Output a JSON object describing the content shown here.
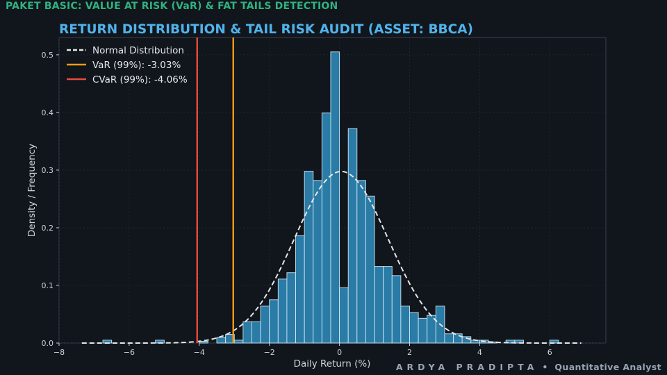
{
  "header": {
    "package_label": "PAKET BASIC: VALUE AT RISK (VaR) & FAT TAILS DETECTION"
  },
  "footer": {
    "name": "ARDYA PRADIPTA",
    "separator": "•",
    "role": "Quantitative Analyst"
  },
  "colors": {
    "background": "#11151c",
    "plot_background": "#11151c",
    "bar_fill": "#2a7ba5",
    "bar_edge": "#cfe8f5",
    "normal_curve": "#e6e6e6",
    "var_line": "#f39c12",
    "cvar_line": "#e74c3c",
    "title": "#4fb3ea",
    "header": "#2fb37f",
    "text": "#d0d4da"
  },
  "chart_data": {
    "type": "histogram",
    "title": "RETURN DISTRIBUTION & TAIL RISK AUDIT (ASSET: BBCA)",
    "xlabel": "Daily Return (%)",
    "ylabel": "Density / Frequency",
    "xlim": [
      -8,
      7.6
    ],
    "ylim": [
      0,
      0.53
    ],
    "xticks": [
      -8,
      -6,
      -4,
      -2,
      0,
      2,
      4,
      6
    ],
    "xtick_labels": [
      "−8",
      "−6",
      "−4",
      "−2",
      "0",
      "2",
      "4",
      "6"
    ],
    "yticks": [
      0.0,
      0.1,
      0.2,
      0.3,
      0.4,
      0.5
    ],
    "ytick_labels": [
      "0.0",
      "0.1",
      "0.2",
      "0.3",
      "0.4",
      "0.5"
    ],
    "grid": true,
    "legend_position": "top-left",
    "bin_width": 0.25,
    "bins": [
      {
        "x0": -6.75,
        "density": 0.005
      },
      {
        "x0": -5.25,
        "density": 0.005
      },
      {
        "x0": -4.0,
        "density": 0.003
      },
      {
        "x0": -3.5,
        "density": 0.01
      },
      {
        "x0": -3.25,
        "density": 0.015
      },
      {
        "x0": -3.0,
        "density": 0.005
      },
      {
        "x0": -2.75,
        "density": 0.037
      },
      {
        "x0": -2.5,
        "density": 0.037
      },
      {
        "x0": -2.25,
        "density": 0.064
      },
      {
        "x0": -2.0,
        "density": 0.075
      },
      {
        "x0": -1.75,
        "density": 0.111
      },
      {
        "x0": -1.5,
        "density": 0.122
      },
      {
        "x0": -1.25,
        "density": 0.186
      },
      {
        "x0": -1.0,
        "density": 0.298
      },
      {
        "x0": -0.75,
        "density": 0.282
      },
      {
        "x0": -0.5,
        "density": 0.399
      },
      {
        "x0": -0.25,
        "density": 0.505
      },
      {
        "x0": 0.0,
        "density": 0.096
      },
      {
        "x0": 0.25,
        "density": 0.372
      },
      {
        "x0": 0.5,
        "density": 0.282
      },
      {
        "x0": 0.75,
        "density": 0.255
      },
      {
        "x0": 1.0,
        "density": 0.133
      },
      {
        "x0": 1.25,
        "density": 0.133
      },
      {
        "x0": 1.5,
        "density": 0.117
      },
      {
        "x0": 1.75,
        "density": 0.064
      },
      {
        "x0": 2.0,
        "density": 0.053
      },
      {
        "x0": 2.25,
        "density": 0.043
      },
      {
        "x0": 2.5,
        "density": 0.048
      },
      {
        "x0": 2.75,
        "density": 0.064
      },
      {
        "x0": 3.0,
        "density": 0.016
      },
      {
        "x0": 3.25,
        "density": 0.016
      },
      {
        "x0": 3.5,
        "density": 0.011
      },
      {
        "x0": 3.75,
        "density": 0.005
      },
      {
        "x0": 4.0,
        "density": 0.005
      },
      {
        "x0": 4.25,
        "density": 0.002
      },
      {
        "x0": 4.75,
        "density": 0.005
      },
      {
        "x0": 5.0,
        "density": 0.005
      },
      {
        "x0": 6.0,
        "density": 0.005
      }
    ],
    "normal_fit": {
      "name": "Normal Distribution",
      "mean": 0.05,
      "std": 1.34,
      "x_range": [
        -7.35,
        6.9
      ]
    },
    "reference_lines": [
      {
        "name": "VaR (99%): -3.03%",
        "x": -3.03
      },
      {
        "name": "CVaR (99%): -4.06%",
        "x": -4.06
      }
    ]
  }
}
